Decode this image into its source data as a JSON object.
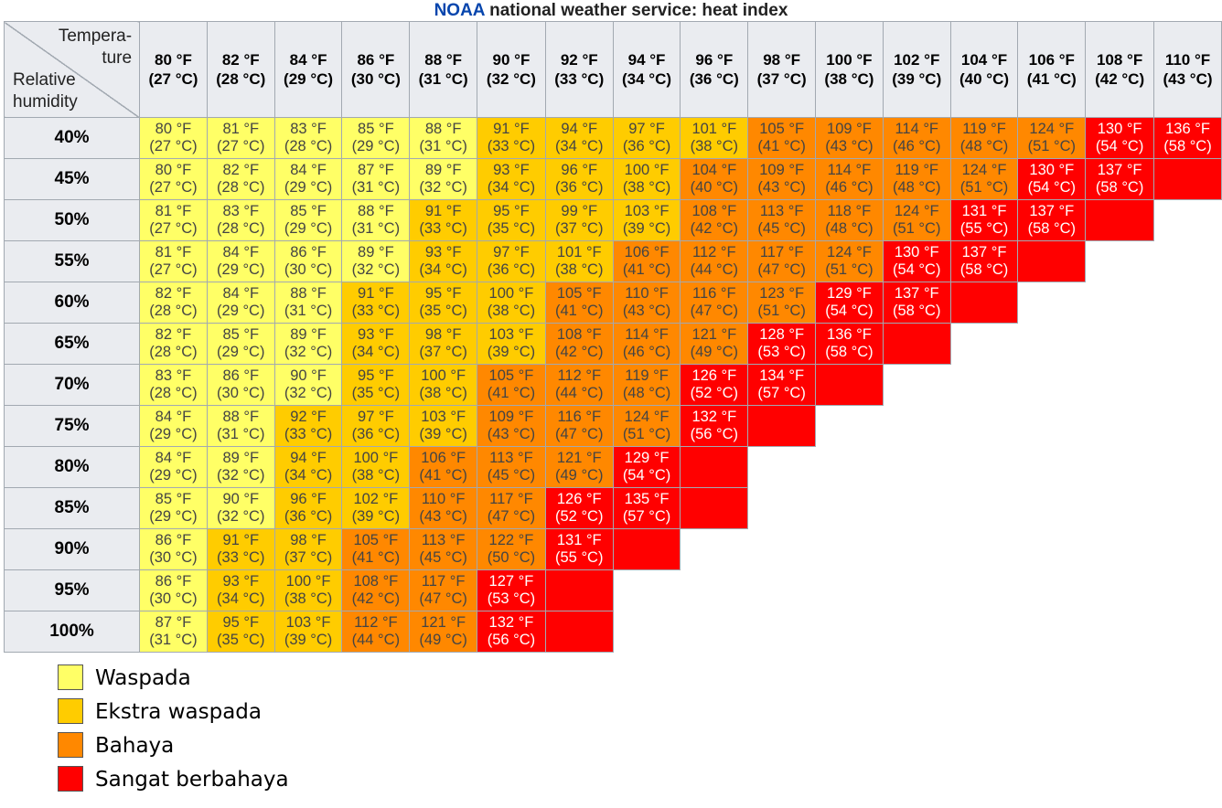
{
  "title": {
    "brand": "NOAA",
    "rest": "national weather service: heat index"
  },
  "corner": {
    "temperature": "Tempera-\nture",
    "humidity": "Relative\nhumidity"
  },
  "levels": [
    {
      "label": "Waspada",
      "color": "#ffff66"
    },
    {
      "label": "Ekstra waspada",
      "color": "#ffcc00"
    },
    {
      "label": "Bahaya",
      "color": "#ff8800"
    },
    {
      "label": "Sangat berbahaya",
      "color": "#ff0000"
    }
  ],
  "chart_data": {
    "type": "table",
    "title": "NOAA national weather service: heat index",
    "xlabel": "Temperature",
    "ylabel": "Relative humidity",
    "columns": [
      "80 °F\n(27 °C)",
      "82 °F\n(28 °C)",
      "84 °F\n(29 °C)",
      "86 °F\n(30 °C)",
      "88 °F\n(31 °C)",
      "90 °F\n(32 °C)",
      "92 °F\n(33 °C)",
      "94 °F\n(34 °C)",
      "96 °F\n(36 °C)",
      "98 °F\n(37 °C)",
      "100 °F\n(38 °C)",
      "102 °F\n(39 °C)",
      "104 °F\n(40 °C)",
      "106 °F\n(41 °C)",
      "108 °F\n(42 °C)",
      "110 °F\n(43 °C)"
    ],
    "rows": [
      {
        "rh": "40%",
        "cells": [
          {
            "f": "80 °F",
            "c": "(27 °C)",
            "level": 1
          },
          {
            "f": "81 °F",
            "c": "(27 °C)",
            "level": 1
          },
          {
            "f": "83 °F",
            "c": "(28 °C)",
            "level": 1
          },
          {
            "f": "85 °F",
            "c": "(29 °C)",
            "level": 1
          },
          {
            "f": "88 °F",
            "c": "(31 °C)",
            "level": 1
          },
          {
            "f": "91 °F",
            "c": "(33 °C)",
            "level": 2
          },
          {
            "f": "94 °F",
            "c": "(34 °C)",
            "level": 2
          },
          {
            "f": "97 °F",
            "c": "(36 °C)",
            "level": 2
          },
          {
            "f": "101 °F",
            "c": "(38 °C)",
            "level": 2
          },
          {
            "f": "105 °F",
            "c": "(41 °C)",
            "level": 3
          },
          {
            "f": "109 °F",
            "c": "(43 °C)",
            "level": 3
          },
          {
            "f": "114 °F",
            "c": "(46 °C)",
            "level": 3
          },
          {
            "f": "119 °F",
            "c": "(48 °C)",
            "level": 3
          },
          {
            "f": "124 °F",
            "c": "(51 °C)",
            "level": 3
          },
          {
            "f": "130 °F",
            "c": "(54 °C)",
            "level": 4
          },
          {
            "f": "136 °F",
            "c": "(58 °C)",
            "level": 4
          }
        ]
      },
      {
        "rh": "45%",
        "cells": [
          {
            "f": "80 °F",
            "c": "(27 °C)",
            "level": 1
          },
          {
            "f": "82 °F",
            "c": "(28 °C)",
            "level": 1
          },
          {
            "f": "84 °F",
            "c": "(29 °C)",
            "level": 1
          },
          {
            "f": "87 °F",
            "c": "(31 °C)",
            "level": 1
          },
          {
            "f": "89 °F",
            "c": "(32 °C)",
            "level": 1
          },
          {
            "f": "93 °F",
            "c": "(34 °C)",
            "level": 2
          },
          {
            "f": "96 °F",
            "c": "(36 °C)",
            "level": 2
          },
          {
            "f": "100 °F",
            "c": "(38 °C)",
            "level": 2
          },
          {
            "f": "104 °F",
            "c": "(40 °C)",
            "level": 3
          },
          {
            "f": "109 °F",
            "c": "(43 °C)",
            "level": 3
          },
          {
            "f": "114 °F",
            "c": "(46 °C)",
            "level": 3
          },
          {
            "f": "119 °F",
            "c": "(48 °C)",
            "level": 3
          },
          {
            "f": "124 °F",
            "c": "(51 °C)",
            "level": 3
          },
          {
            "f": "130 °F",
            "c": "(54 °C)",
            "level": 4
          },
          {
            "f": "137 °F",
            "c": "(58 °C)",
            "level": 4
          },
          {
            "level": 4
          }
        ]
      },
      {
        "rh": "50%",
        "cells": [
          {
            "f": "81 °F",
            "c": "(27 °C)",
            "level": 1
          },
          {
            "f": "83 °F",
            "c": "(28 °C)",
            "level": 1
          },
          {
            "f": "85 °F",
            "c": "(29 °C)",
            "level": 1
          },
          {
            "f": "88 °F",
            "c": "(31 °C)",
            "level": 1
          },
          {
            "f": "91 °F",
            "c": "(33 °C)",
            "level": 2
          },
          {
            "f": "95 °F",
            "c": "(35 °C)",
            "level": 2
          },
          {
            "f": "99 °F",
            "c": "(37 °C)",
            "level": 2
          },
          {
            "f": "103 °F",
            "c": "(39 °C)",
            "level": 2
          },
          {
            "f": "108 °F",
            "c": "(42 °C)",
            "level": 3
          },
          {
            "f": "113 °F",
            "c": "(45 °C)",
            "level": 3
          },
          {
            "f": "118 °F",
            "c": "(48 °C)",
            "level": 3
          },
          {
            "f": "124 °F",
            "c": "(51 °C)",
            "level": 3
          },
          {
            "f": "131 °F",
            "c": "(55 °C)",
            "level": 4
          },
          {
            "f": "137 °F",
            "c": "(58 °C)",
            "level": 4
          },
          {
            "level": 4
          },
          {
            "level": 0
          }
        ]
      },
      {
        "rh": "55%",
        "cells": [
          {
            "f": "81 °F",
            "c": "(27 °C)",
            "level": 1
          },
          {
            "f": "84 °F",
            "c": "(29 °C)",
            "level": 1
          },
          {
            "f": "86 °F",
            "c": "(30 °C)",
            "level": 1
          },
          {
            "f": "89 °F",
            "c": "(32 °C)",
            "level": 1
          },
          {
            "f": "93 °F",
            "c": "(34 °C)",
            "level": 2
          },
          {
            "f": "97 °F",
            "c": "(36 °C)",
            "level": 2
          },
          {
            "f": "101 °F",
            "c": "(38 °C)",
            "level": 2
          },
          {
            "f": "106 °F",
            "c": "(41 °C)",
            "level": 3
          },
          {
            "f": "112 °F",
            "c": "(44 °C)",
            "level": 3
          },
          {
            "f": "117 °F",
            "c": "(47 °C)",
            "level": 3
          },
          {
            "f": "124 °F",
            "c": "(51 °C)",
            "level": 3
          },
          {
            "f": "130 °F",
            "c": "(54 °C)",
            "level": 4
          },
          {
            "f": "137 °F",
            "c": "(58 °C)",
            "level": 4
          },
          {
            "level": 4
          },
          {
            "level": 0
          },
          {
            "level": 0
          }
        ]
      },
      {
        "rh": "60%",
        "cells": [
          {
            "f": "82 °F",
            "c": "(28 °C)",
            "level": 1
          },
          {
            "f": "84 °F",
            "c": "(29 °C)",
            "level": 1
          },
          {
            "f": "88 °F",
            "c": "(31 °C)",
            "level": 1
          },
          {
            "f": "91 °F",
            "c": "(33 °C)",
            "level": 2
          },
          {
            "f": "95 °F",
            "c": "(35 °C)",
            "level": 2
          },
          {
            "f": "100 °F",
            "c": "(38 °C)",
            "level": 2
          },
          {
            "f": "105 °F",
            "c": "(41 °C)",
            "level": 3
          },
          {
            "f": "110 °F",
            "c": "(43 °C)",
            "level": 3
          },
          {
            "f": "116 °F",
            "c": "(47 °C)",
            "level": 3
          },
          {
            "f": "123 °F",
            "c": "(51 °C)",
            "level": 3
          },
          {
            "f": "129 °F",
            "c": "(54 °C)",
            "level": 4
          },
          {
            "f": "137 °F",
            "c": "(58 °C)",
            "level": 4
          },
          {
            "level": 4
          },
          {
            "level": 0
          },
          {
            "level": 0
          },
          {
            "level": 0
          }
        ]
      },
      {
        "rh": "65%",
        "cells": [
          {
            "f": "82 °F",
            "c": "(28 °C)",
            "level": 1
          },
          {
            "f": "85 °F",
            "c": "(29 °C)",
            "level": 1
          },
          {
            "f": "89 °F",
            "c": "(32 °C)",
            "level": 1
          },
          {
            "f": "93 °F",
            "c": "(34 °C)",
            "level": 2
          },
          {
            "f": "98 °F",
            "c": "(37 °C)",
            "level": 2
          },
          {
            "f": "103 °F",
            "c": "(39 °C)",
            "level": 2
          },
          {
            "f": "108 °F",
            "c": "(42 °C)",
            "level": 3
          },
          {
            "f": "114 °F",
            "c": "(46 °C)",
            "level": 3
          },
          {
            "f": "121 °F",
            "c": "(49 °C)",
            "level": 3
          },
          {
            "f": "128 °F",
            "c": "(53 °C)",
            "level": 4
          },
          {
            "f": "136 °F",
            "c": "(58 °C)",
            "level": 4
          },
          {
            "level": 4
          },
          {
            "level": 0
          },
          {
            "level": 0
          },
          {
            "level": 0
          },
          {
            "level": 0
          }
        ]
      },
      {
        "rh": "70%",
        "cells": [
          {
            "f": "83 °F",
            "c": "(28 °C)",
            "level": 1
          },
          {
            "f": "86 °F",
            "c": "(30 °C)",
            "level": 1
          },
          {
            "f": "90 °F",
            "c": "(32 °C)",
            "level": 1
          },
          {
            "f": "95 °F",
            "c": "(35 °C)",
            "level": 2
          },
          {
            "f": "100 °F",
            "c": "(38 °C)",
            "level": 2
          },
          {
            "f": "105 °F",
            "c": "(41 °C)",
            "level": 3
          },
          {
            "f": "112 °F",
            "c": "(44 °C)",
            "level": 3
          },
          {
            "f": "119 °F",
            "c": "(48 °C)",
            "level": 3
          },
          {
            "f": "126 °F",
            "c": "(52 °C)",
            "level": 4
          },
          {
            "f": "134 °F",
            "c": "(57 °C)",
            "level": 4
          },
          {
            "level": 4
          },
          {
            "level": 0
          },
          {
            "level": 0
          },
          {
            "level": 0
          },
          {
            "level": 0
          },
          {
            "level": 0
          }
        ]
      },
      {
        "rh": "75%",
        "cells": [
          {
            "f": "84 °F",
            "c": "(29 °C)",
            "level": 1
          },
          {
            "f": "88 °F",
            "c": "(31 °C)",
            "level": 1
          },
          {
            "f": "92 °F",
            "c": "(33 °C)",
            "level": 2
          },
          {
            "f": "97 °F",
            "c": "(36 °C)",
            "level": 2
          },
          {
            "f": "103 °F",
            "c": "(39 °C)",
            "level": 2
          },
          {
            "f": "109 °F",
            "c": "(43 °C)",
            "level": 3
          },
          {
            "f": "116 °F",
            "c": "(47 °C)",
            "level": 3
          },
          {
            "f": "124 °F",
            "c": "(51 °C)",
            "level": 3
          },
          {
            "f": "132 °F",
            "c": "(56 °C)",
            "level": 4
          },
          {
            "level": 4
          },
          {
            "level": 0
          },
          {
            "level": 0
          },
          {
            "level": 0
          },
          {
            "level": 0
          },
          {
            "level": 0
          },
          {
            "level": 0
          }
        ]
      },
      {
        "rh": "80%",
        "cells": [
          {
            "f": "84 °F",
            "c": "(29 °C)",
            "level": 1
          },
          {
            "f": "89 °F",
            "c": "(32 °C)",
            "level": 1
          },
          {
            "f": "94 °F",
            "c": "(34 °C)",
            "level": 2
          },
          {
            "f": "100 °F",
            "c": "(38 °C)",
            "level": 2
          },
          {
            "f": "106 °F",
            "c": "(41 °C)",
            "level": 3
          },
          {
            "f": "113 °F",
            "c": "(45 °C)",
            "level": 3
          },
          {
            "f": "121 °F",
            "c": "(49 °C)",
            "level": 3
          },
          {
            "f": "129 °F",
            "c": "(54 °C)",
            "level": 4
          },
          {
            "level": 4
          },
          {
            "level": 0
          },
          {
            "level": 0
          },
          {
            "level": 0
          },
          {
            "level": 0
          },
          {
            "level": 0
          },
          {
            "level": 0
          },
          {
            "level": 0
          }
        ]
      },
      {
        "rh": "85%",
        "cells": [
          {
            "f": "85 °F",
            "c": "(29 °C)",
            "level": 1
          },
          {
            "f": "90 °F",
            "c": "(32 °C)",
            "level": 1
          },
          {
            "f": "96 °F",
            "c": "(36 °C)",
            "level": 2
          },
          {
            "f": "102 °F",
            "c": "(39 °C)",
            "level": 2
          },
          {
            "f": "110 °F",
            "c": "(43 °C)",
            "level": 3
          },
          {
            "f": "117 °F",
            "c": "(47 °C)",
            "level": 3
          },
          {
            "f": "126 °F",
            "c": "(52 °C)",
            "level": 4
          },
          {
            "f": "135 °F",
            "c": "(57 °C)",
            "level": 4
          },
          {
            "level": 4
          },
          {
            "level": 0
          },
          {
            "level": 0
          },
          {
            "level": 0
          },
          {
            "level": 0
          },
          {
            "level": 0
          },
          {
            "level": 0
          },
          {
            "level": 0
          }
        ]
      },
      {
        "rh": "90%",
        "cells": [
          {
            "f": "86 °F",
            "c": "(30 °C)",
            "level": 1
          },
          {
            "f": "91 °F",
            "c": "(33 °C)",
            "level": 2
          },
          {
            "f": "98 °F",
            "c": "(37 °C)",
            "level": 2
          },
          {
            "f": "105 °F",
            "c": "(41 °C)",
            "level": 3
          },
          {
            "f": "113 °F",
            "c": "(45 °C)",
            "level": 3
          },
          {
            "f": "122 °F",
            "c": "(50 °C)",
            "level": 3
          },
          {
            "f": "131 °F",
            "c": "(55 °C)",
            "level": 4
          },
          {
            "level": 4
          },
          {
            "level": 0
          },
          {
            "level": 0
          },
          {
            "level": 0
          },
          {
            "level": 0
          },
          {
            "level": 0
          },
          {
            "level": 0
          },
          {
            "level": 0
          },
          {
            "level": 0
          }
        ]
      },
      {
        "rh": "95%",
        "cells": [
          {
            "f": "86 °F",
            "c": "(30 °C)",
            "level": 1
          },
          {
            "f": "93 °F",
            "c": "(34 °C)",
            "level": 2
          },
          {
            "f": "100 °F",
            "c": "(38 °C)",
            "level": 2
          },
          {
            "f": "108 °F",
            "c": "(42 °C)",
            "level": 3
          },
          {
            "f": "117 °F",
            "c": "(47 °C)",
            "level": 3
          },
          {
            "f": "127 °F",
            "c": "(53 °C)",
            "level": 4
          },
          {
            "level": 4
          },
          {
            "level": 0
          },
          {
            "level": 0
          },
          {
            "level": 0
          },
          {
            "level": 0
          },
          {
            "level": 0
          },
          {
            "level": 0
          },
          {
            "level": 0
          },
          {
            "level": 0
          },
          {
            "level": 0
          }
        ]
      },
      {
        "rh": "100%",
        "cells": [
          {
            "f": "87 °F",
            "c": "(31 °C)",
            "level": 1
          },
          {
            "f": "95 °F",
            "c": "(35 °C)",
            "level": 2
          },
          {
            "f": "103 °F",
            "c": "(39 °C)",
            "level": 2
          },
          {
            "f": "112 °F",
            "c": "(44 °C)",
            "level": 3
          },
          {
            "f": "121 °F",
            "c": "(49 °C)",
            "level": 3
          },
          {
            "f": "132 °F",
            "c": "(56 °C)",
            "level": 4
          },
          {
            "level": 4
          },
          {
            "level": 0
          },
          {
            "level": 0
          },
          {
            "level": 0
          },
          {
            "level": 0
          },
          {
            "level": 0
          },
          {
            "level": 0
          },
          {
            "level": 0
          },
          {
            "level": 0
          },
          {
            "level": 0
          }
        ]
      }
    ]
  }
}
